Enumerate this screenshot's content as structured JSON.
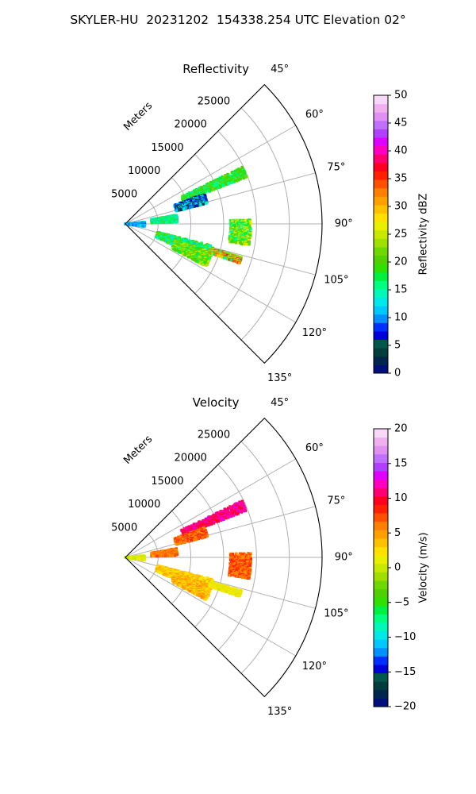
{
  "figure_title": "SKYLER-HU  20231202  154338.254 UTC Elevation 02°",
  "chart_data": [
    {
      "type": "heatmap",
      "subtype": "polar-sector-ppi",
      "title": "Reflectivity",
      "radial_label": "Meters",
      "radial_ticks": [
        "5000",
        "10000",
        "15000",
        "20000",
        "25000"
      ],
      "rmax": 30000,
      "angle_ticks": [
        "45°",
        "60°",
        "75°",
        "90°",
        "105°",
        "120°",
        "135°"
      ],
      "angle_range": [
        45,
        135
      ],
      "colorbar": {
        "label": "Reflectivity dBZ",
        "range": [
          0,
          50
        ],
        "ticks": [
          "0",
          "5",
          "10",
          "15",
          "20",
          "25",
          "30",
          "35",
          "40",
          "45",
          "50"
        ]
      },
      "echo_regions": [
        {
          "az_range": [
            64,
            69
          ],
          "r_range": [
            9500,
            20000
          ],
          "value_range": [
            15,
            22
          ]
        },
        {
          "az_range": [
            69,
            76
          ],
          "r_range": [
            8000,
            13000
          ],
          "value_range": [
            2,
            14
          ]
        },
        {
          "az_range": [
            80,
            88
          ],
          "r_range": [
            4000,
            8000
          ],
          "value_range": [
            12,
            20
          ]
        },
        {
          "az_range": [
            84,
            98
          ],
          "r_range": [
            0,
            3000
          ],
          "value_range": [
            8,
            14
          ]
        },
        {
          "az_range": [
            88,
            100
          ],
          "r_range": [
            16000,
            19200
          ],
          "value_range": [
            14,
            28
          ]
        },
        {
          "az_range": [
            104,
            114
          ],
          "r_range": [
            5000,
            14000
          ],
          "value_range": [
            12,
            22
          ]
        },
        {
          "az_range": [
            108,
            118
          ],
          "r_range": [
            8000,
            14000
          ],
          "value_range": [
            16,
            26
          ]
        },
        {
          "az_range": [
            106,
            109
          ],
          "r_range": [
            13500,
            18500
          ],
          "value_range": [
            14,
            38
          ]
        }
      ]
    },
    {
      "type": "heatmap",
      "subtype": "polar-sector-ppi",
      "title": "Velocity",
      "radial_label": "Meters",
      "radial_ticks": [
        "5000",
        "10000",
        "15000",
        "20000",
        "25000"
      ],
      "rmax": 30000,
      "angle_ticks": [
        "45°",
        "60°",
        "75°",
        "90°",
        "105°",
        "120°",
        "135°"
      ],
      "angle_range": [
        45,
        135
      ],
      "colorbar": {
        "label": "Velocity (m/s)",
        "range": [
          -20,
          20
        ],
        "ticks": [
          "−20",
          "−15",
          "−10",
          "−5",
          "0",
          "5",
          "10",
          "15",
          "20"
        ]
      },
      "echo_regions": [
        {
          "az_range": [
            64,
            69
          ],
          "r_range": [
            9500,
            20000
          ],
          "value_range": [
            9,
            13
          ]
        },
        {
          "az_range": [
            69,
            76
          ],
          "r_range": [
            8000,
            13000
          ],
          "value_range": [
            5,
            9
          ]
        },
        {
          "az_range": [
            80,
            88
          ],
          "r_range": [
            4000,
            8000
          ],
          "value_range": [
            4,
            8
          ]
        },
        {
          "az_range": [
            84,
            98
          ],
          "r_range": [
            0,
            3000
          ],
          "value_range": [
            -1,
            3
          ]
        },
        {
          "az_range": [
            88,
            100
          ],
          "r_range": [
            16000,
            19200
          ],
          "value_range": [
            5,
            9
          ]
        },
        {
          "az_range": [
            104,
            114
          ],
          "r_range": [
            5000,
            14000
          ],
          "value_range": [
            1,
            5
          ]
        },
        {
          "az_range": [
            108,
            118
          ],
          "r_range": [
            8000,
            14000
          ],
          "value_range": [
            2,
            6
          ]
        },
        {
          "az_range": [
            106,
            109
          ],
          "r_range": [
            13500,
            18500
          ],
          "value_range": [
            0,
            3
          ]
        }
      ]
    }
  ]
}
